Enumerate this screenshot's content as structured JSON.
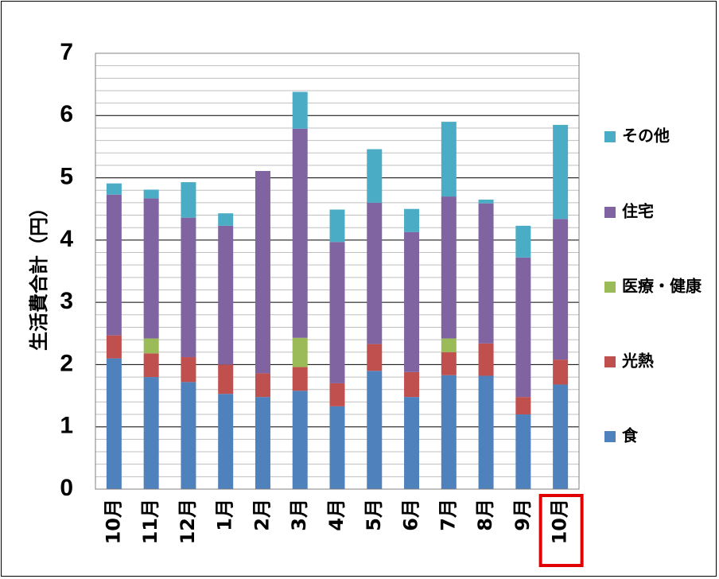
{
  "chart_data": {
    "type": "bar",
    "stacked": true,
    "ylabel": "生活費合計（円）",
    "ylim": [
      0,
      7
    ],
    "yticks": [
      0,
      1,
      2,
      3,
      4,
      5,
      6,
      7
    ],
    "grid": true,
    "legend_position": "right",
    "categories": [
      "10月",
      "11月",
      "12月",
      "1月",
      "2月",
      "3月",
      "4月",
      "5月",
      "6月",
      "7月",
      "8月",
      "9月",
      "10月"
    ],
    "highlighted_category_index": 12,
    "highlight_color": "#e00000",
    "series": [
      {
        "name": "食",
        "color": "#4f81bd",
        "values": [
          2.1,
          1.8,
          1.72,
          1.53,
          1.48,
          1.58,
          1.33,
          1.9,
          1.48,
          1.83,
          1.82,
          1.2,
          1.68
        ]
      },
      {
        "name": "光熱",
        "color": "#c0504d",
        "values": [
          0.37,
          0.38,
          0.4,
          0.47,
          0.38,
          0.38,
          0.37,
          0.43,
          0.4,
          0.37,
          0.52,
          0.28,
          0.4
        ]
      },
      {
        "name": "医療・健康",
        "color": "#9bbb59",
        "values": [
          0,
          0.24,
          0,
          0,
          0,
          0.47,
          0,
          0,
          0,
          0.22,
          0,
          0,
          0
        ]
      },
      {
        "name": "住宅",
        "color": "#8064a2",
        "values": [
          2.26,
          2.25,
          2.24,
          2.23,
          3.25,
          3.36,
          2.27,
          2.27,
          2.25,
          2.28,
          2.25,
          2.24,
          2.26
        ]
      },
      {
        "name": "その他",
        "color": "#4bacc6",
        "values": [
          0.18,
          0.14,
          0.57,
          0.2,
          0,
          0.59,
          0.52,
          0.86,
          0.37,
          1.2,
          0.06,
          0.51,
          1.51
        ]
      }
    ]
  }
}
